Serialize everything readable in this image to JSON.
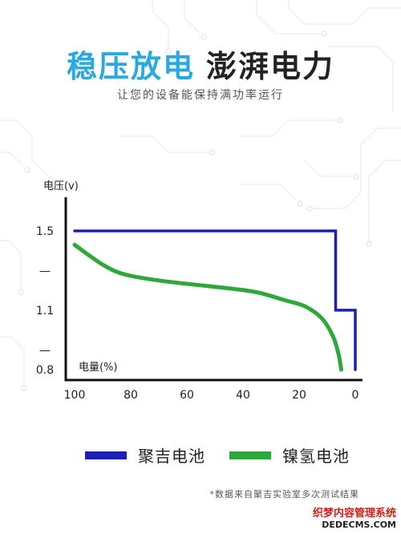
{
  "header": {
    "title_accent": "稳压放电",
    "title_main": "澎湃电力",
    "subtitle": "让您的设备能保持满功率运行"
  },
  "chart_data": {
    "type": "line",
    "ylabel": "电压(v)",
    "xlabel": "电量(%)",
    "xlim": [
      100,
      0
    ],
    "ylim": [
      0.8,
      1.5
    ],
    "x_ticks": [
      {
        "value": 100,
        "label": "100"
      },
      {
        "value": 80,
        "label": "80"
      },
      {
        "value": 60,
        "label": "60"
      },
      {
        "value": 40,
        "label": "40"
      },
      {
        "value": 20,
        "label": "20"
      },
      {
        "value": 0,
        "label": "0"
      }
    ],
    "y_ticks": [
      {
        "value": 1.5,
        "label": "1.5"
      },
      {
        "value": 1.3,
        "label": "—"
      },
      {
        "value": 1.1,
        "label": "1.1"
      },
      {
        "value": 0.9,
        "label": "—"
      },
      {
        "value": 0.8,
        "label": "0.8"
      }
    ],
    "series": [
      {
        "name": "聚吉电池",
        "color": "#1a20b3",
        "curve": "linear",
        "x": [
          100,
          7,
          7,
          0,
          0
        ],
        "y": [
          1.5,
          1.5,
          1.1,
          1.1,
          0.8
        ]
      },
      {
        "name": "镍氢电池",
        "color": "#2fa83a",
        "curve": "smooth",
        "x": [
          100,
          90,
          82,
          70,
          58,
          45,
          35,
          25,
          18,
          12,
          8,
          6,
          5
        ],
        "y": [
          1.43,
          1.33,
          1.28,
          1.25,
          1.23,
          1.21,
          1.19,
          1.15,
          1.12,
          1.06,
          0.97,
          0.88,
          0.8
        ]
      }
    ]
  },
  "legend": {
    "item1": {
      "label": "聚吉电池",
      "color": "#1a20b3"
    },
    "item2": {
      "label": "镍氢电池",
      "color": "#2fa83a"
    }
  },
  "footnote": "*数据来自聚吉实验室多次测试结果",
  "watermark": {
    "line1": "织梦内容管理系统",
    "line2": "DEDECMS.COM"
  }
}
